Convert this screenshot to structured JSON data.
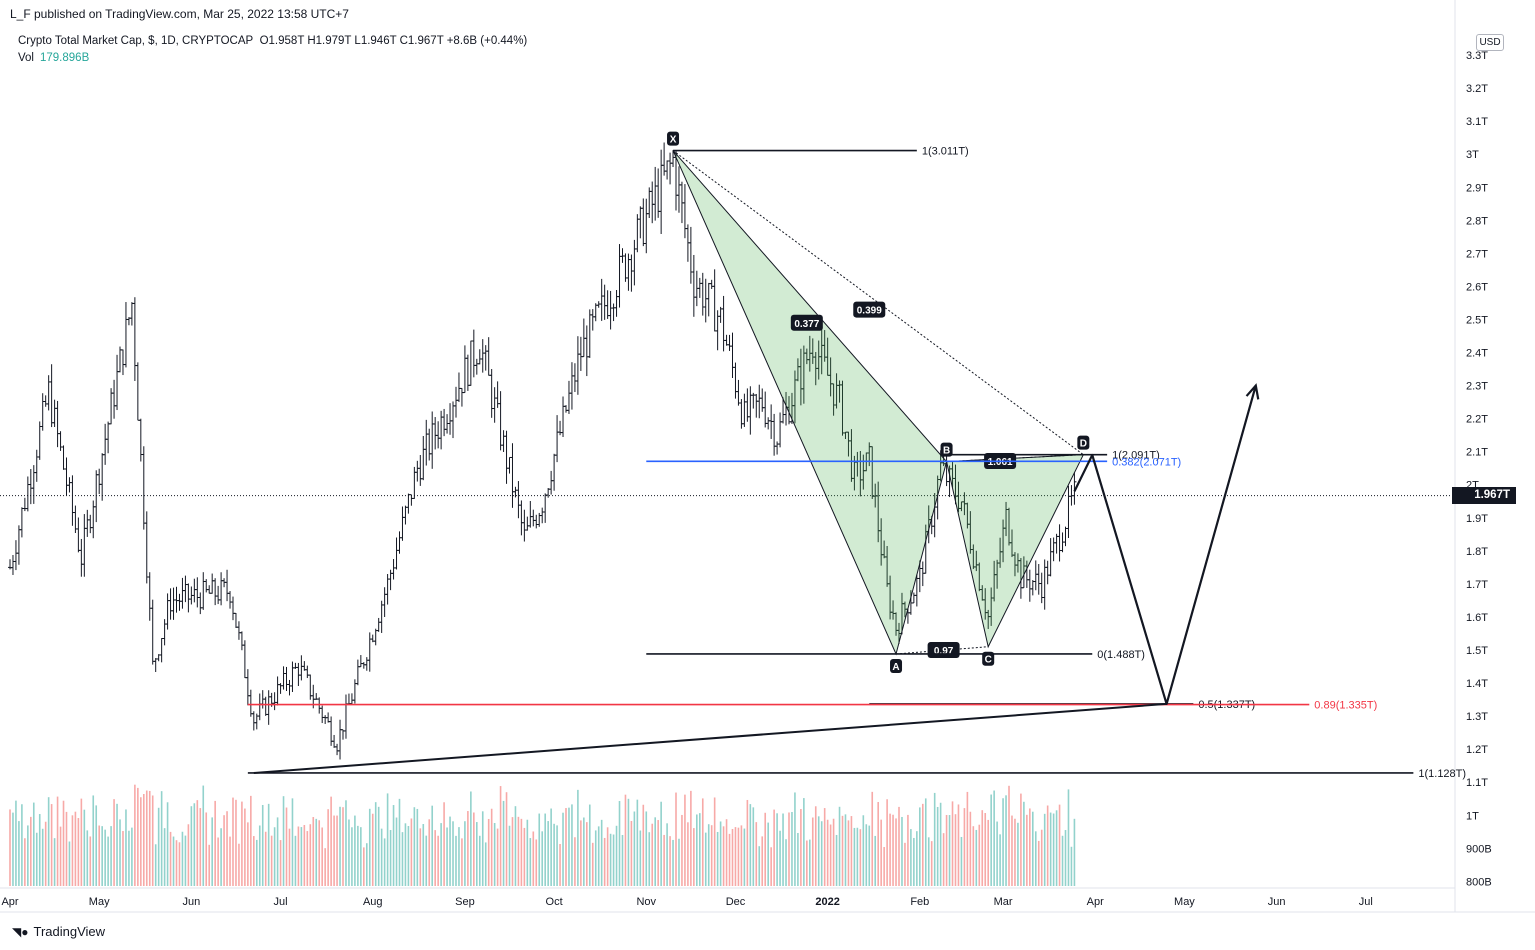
{
  "attribution": "L_F published on TradingView.com, Mar 25, 2022 13:58 UTC+7",
  "legend": {
    "symbol": "Crypto Total Market Cap, $, 1D, CRYPTOCAP",
    "ohlc": "O1.958T  H1.979T  L1.946T  C1.967T  +8.6B (+0.44%)",
    "vol_label": "Vol",
    "vol_value": "179.896B"
  },
  "currency": "USD",
  "current_price_label": "1.967T",
  "brand": "TradingView",
  "chart_data": {
    "type": "candlestick",
    "title": "Crypto Total Market Cap, $, 1D, CRYPTOCAP",
    "y_unit": "T",
    "ylim": [
      0.78,
      3.4
    ],
    "y_ticks": [
      {
        "v": 3.3,
        "label": "3.3T"
      },
      {
        "v": 3.2,
        "label": "3.2T"
      },
      {
        "v": 3.1,
        "label": "3.1T"
      },
      {
        "v": 3.0,
        "label": "3T"
      },
      {
        "v": 2.9,
        "label": "2.9T"
      },
      {
        "v": 2.8,
        "label": "2.8T"
      },
      {
        "v": 2.7,
        "label": "2.7T"
      },
      {
        "v": 2.6,
        "label": "2.6T"
      },
      {
        "v": 2.5,
        "label": "2.5T"
      },
      {
        "v": 2.4,
        "label": "2.4T"
      },
      {
        "v": 2.3,
        "label": "2.3T"
      },
      {
        "v": 2.2,
        "label": "2.2T"
      },
      {
        "v": 2.1,
        "label": "2.1T"
      },
      {
        "v": 2.0,
        "label": "2T"
      },
      {
        "v": 1.9,
        "label": "1.9T"
      },
      {
        "v": 1.8,
        "label": "1.8T"
      },
      {
        "v": 1.7,
        "label": "1.7T"
      },
      {
        "v": 1.6,
        "label": "1.6T"
      },
      {
        "v": 1.5,
        "label": "1.5T"
      },
      {
        "v": 1.4,
        "label": "1.4T"
      },
      {
        "v": 1.3,
        "label": "1.3T"
      },
      {
        "v": 1.2,
        "label": "1.2T"
      },
      {
        "v": 1.1,
        "label": "1.1T"
      },
      {
        "v": 1.0,
        "label": "1T"
      },
      {
        "v": 0.9,
        "label": "900B"
      },
      {
        "v": 0.8,
        "label": "800B"
      }
    ],
    "x_start": "2021-04-01",
    "x_end": "2022-07-31",
    "x_ticks": [
      {
        "date": "2021-04-01",
        "label": "Apr"
      },
      {
        "date": "2021-05-01",
        "label": "May"
      },
      {
        "date": "2021-06-01",
        "label": "Jun"
      },
      {
        "date": "2021-07-01",
        "label": "Jul"
      },
      {
        "date": "2021-08-01",
        "label": "Aug"
      },
      {
        "date": "2021-09-01",
        "label": "Sep"
      },
      {
        "date": "2021-10-01",
        "label": "Oct"
      },
      {
        "date": "2021-11-01",
        "label": "Nov"
      },
      {
        "date": "2021-12-01",
        "label": "Dec"
      },
      {
        "date": "2022-01-01",
        "label": "2022"
      },
      {
        "date": "2022-02-01",
        "label": "Feb"
      },
      {
        "date": "2022-03-01",
        "label": "Mar"
      },
      {
        "date": "2022-04-01",
        "label": "Apr"
      },
      {
        "date": "2022-05-01",
        "label": "May"
      },
      {
        "date": "2022-06-01",
        "label": "Jun"
      },
      {
        "date": "2022-07-01",
        "label": "Jul"
      }
    ],
    "price_path": [
      {
        "date": "2021-04-01",
        "value": 1.75
      },
      {
        "date": "2021-04-14",
        "value": 2.28
      },
      {
        "date": "2021-04-25",
        "value": 1.78
      },
      {
        "date": "2021-05-12",
        "value": 2.55
      },
      {
        "date": "2021-05-19",
        "value": 1.45
      },
      {
        "date": "2021-05-25",
        "value": 1.65
      },
      {
        "date": "2021-06-14",
        "value": 1.68
      },
      {
        "date": "2021-06-22",
        "value": 1.29
      },
      {
        "date": "2021-07-07",
        "value": 1.45
      },
      {
        "date": "2021-07-20",
        "value": 1.22
      },
      {
        "date": "2021-08-06",
        "value": 1.7
      },
      {
        "date": "2021-08-16",
        "value": 2.05
      },
      {
        "date": "2021-09-06",
        "value": 2.43
      },
      {
        "date": "2021-09-21",
        "value": 1.84
      },
      {
        "date": "2021-09-27",
        "value": 1.95
      },
      {
        "date": "2021-10-10",
        "value": 2.4
      },
      {
        "date": "2021-10-21",
        "value": 2.6
      },
      {
        "date": "2021-11-10",
        "value": 2.98
      },
      {
        "date": "2021-11-17",
        "value": 2.62
      },
      {
        "date": "2021-11-26",
        "value": 2.5
      },
      {
        "date": "2021-12-04",
        "value": 2.2
      },
      {
        "date": "2021-12-10",
        "value": 2.25
      },
      {
        "date": "2021-12-15",
        "value": 2.15
      },
      {
        "date": "2021-12-27",
        "value": 2.43
      },
      {
        "date": "2022-01-05",
        "value": 2.25
      },
      {
        "date": "2022-01-10",
        "value": 2.02
      },
      {
        "date": "2022-01-15",
        "value": 2.07
      },
      {
        "date": "2022-01-21",
        "value": 1.68
      },
      {
        "date": "2022-01-24",
        "value": 1.57
      },
      {
        "date": "2022-02-01",
        "value": 1.72
      },
      {
        "date": "2022-02-08",
        "value": 2.05
      },
      {
        "date": "2022-02-15",
        "value": 1.95
      },
      {
        "date": "2022-02-24",
        "value": 1.6
      },
      {
        "date": "2022-03-02",
        "value": 1.9
      },
      {
        "date": "2022-03-07",
        "value": 1.72
      },
      {
        "date": "2022-03-14",
        "value": 1.7
      },
      {
        "date": "2022-03-25",
        "value": 1.967
      }
    ],
    "volume": {
      "unit": "B",
      "peak_value": 460,
      "last_value": 179.896,
      "note": "daily volume histogram along the bottom of the price pane; peaks in mid-May 2021 and late Dec 2021"
    },
    "harmonic_pattern": {
      "points": [
        {
          "label": "X",
          "date": "2021-11-10",
          "value": 3.011
        },
        {
          "label": "A",
          "date": "2022-01-24",
          "value": 1.488
        },
        {
          "label": "B",
          "date": "2022-02-10",
          "value": 2.07
        },
        {
          "label": "C",
          "date": "2022-02-24",
          "value": 1.51
        },
        {
          "label": "D",
          "date": "2022-03-28",
          "value": 2.091
        }
      ],
      "ratios": [
        {
          "label": "0.377",
          "date": "2021-12-25",
          "value": 2.49
        },
        {
          "label": "0.399",
          "date": "2022-01-15",
          "value": 2.53
        },
        {
          "label": "1.061",
          "date": "2022-02-28",
          "value": 2.072
        },
        {
          "label": "0.97",
          "date": "2022-02-09",
          "value": 1.5
        }
      ]
    },
    "levels": [
      {
        "label": "1(3.011T)",
        "value": 3.011,
        "from": "2021-11-10",
        "to": "2022-01-31",
        "color": "#131722"
      },
      {
        "label": "1(2.091T)",
        "value": 2.091,
        "from": "2022-02-10",
        "to": "2022-04-05",
        "color": "#131722"
      },
      {
        "label": "0.382(2.071T)",
        "value": 2.071,
        "from": "2021-11-01",
        "to": "2022-04-05",
        "color": "#2962ff"
      },
      {
        "label": "0(1.488T)",
        "value": 1.488,
        "from": "2021-11-01",
        "to": "2022-03-31",
        "color": "#131722"
      },
      {
        "label": "0.5(1.337T)",
        "value": 1.337,
        "from": "2022-01-15",
        "to": "2022-05-04",
        "color": "#131722"
      },
      {
        "label": "0.89(1.335T)",
        "value": 1.335,
        "from": "2021-06-20",
        "to": "2022-06-12",
        "color": "#f23645"
      },
      {
        "label": "1(1.128T)",
        "value": 1.128,
        "from": "2021-06-20",
        "to": "2022-07-17",
        "color": "#131722"
      }
    ],
    "projection": [
      {
        "date": "2022-03-25",
        "value": 1.98
      },
      {
        "date": "2022-03-31",
        "value": 2.09
      },
      {
        "date": "2022-04-25",
        "value": 1.337
      },
      {
        "date": "2022-05-25",
        "value": 2.3
      }
    ],
    "trendline": [
      {
        "date": "2021-06-22",
        "value": 1.128
      },
      {
        "date": "2022-04-25",
        "value": 1.337
      }
    ]
  }
}
